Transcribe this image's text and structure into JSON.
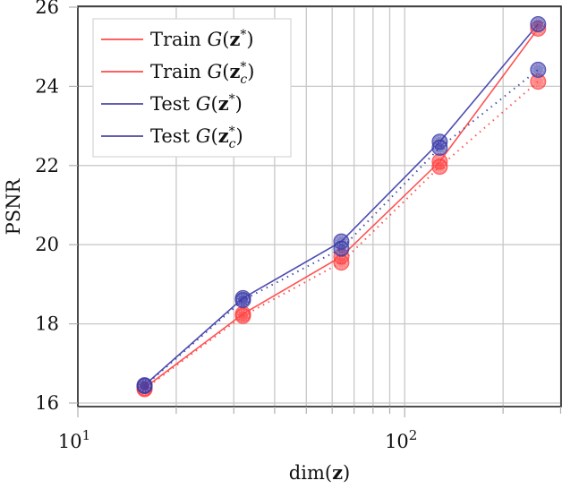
{
  "chart_data": {
    "type": "line",
    "title": "",
    "xlabel": "dim(z)",
    "ylabel": "PSNR",
    "xscale": "log",
    "xlim": [
      10,
      301
    ],
    "ylim": [
      15.9,
      26
    ],
    "grid": true,
    "legend_position": "upper left",
    "x": [
      16,
      32,
      64,
      128,
      256
    ],
    "x_tick_labels": [
      {
        "value": 10,
        "base": "10",
        "exp": "1"
      },
      {
        "value": 100,
        "base": "10",
        "exp": "2"
      }
    ],
    "y_ticks": [
      16,
      18,
      20,
      22,
      24,
      26
    ],
    "y_tick_labels": [
      "16",
      "18",
      "20",
      "22",
      "24",
      "26"
    ],
    "series": [
      {
        "name": "Train G(z*)",
        "label_prefix": "Train",
        "sub": "",
        "color": "#ff4040",
        "dash": "solid",
        "values": [
          16.38,
          18.25,
          19.7,
          22.1,
          25.46
        ]
      },
      {
        "name": "Train G(z*_c)",
        "label_prefix": "Train",
        "sub": "c",
        "color": "#ff4040",
        "dash": "dotted",
        "values": [
          16.35,
          18.2,
          19.55,
          21.97,
          24.12
        ]
      },
      {
        "name": "Test G(z*)",
        "label_prefix": "Test",
        "sub": "",
        "color": "#3a3aa8",
        "dash": "solid",
        "values": [
          16.45,
          18.65,
          20.08,
          22.6,
          25.57
        ]
      },
      {
        "name": "Test G(z*_c)",
        "label_prefix": "Test",
        "sub": "c",
        "color": "#3a3aa8",
        "dash": "dotted",
        "values": [
          16.43,
          18.6,
          19.9,
          22.45,
          24.42
        ]
      }
    ]
  },
  "legend": {
    "items": [
      {
        "prefix": "Train",
        "sub": "",
        "color": "#ff0000"
      },
      {
        "prefix": "Train",
        "sub": "c",
        "color": "#ff0000"
      },
      {
        "prefix": "Test",
        "sub": "",
        "color": "#00007a"
      },
      {
        "prefix": "Test",
        "sub": "c",
        "color": "#00007a"
      }
    ]
  },
  "axes": {
    "x_label_text": "dim",
    "x_label_var": "z",
    "y_label_text": "PSNR"
  }
}
